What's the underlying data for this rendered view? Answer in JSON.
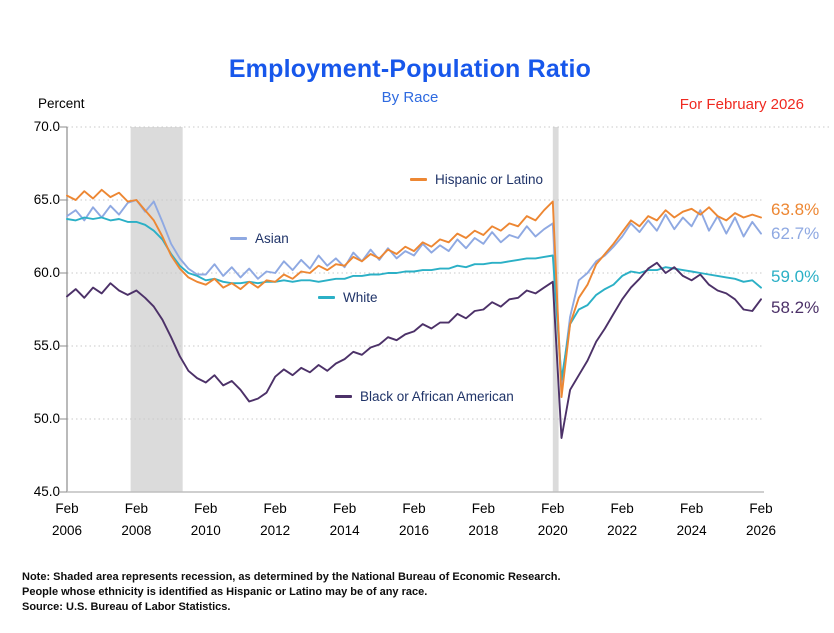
{
  "header": {
    "title": "Employment-Population Ratio",
    "subtitle": "By Race",
    "as_of": "For February 2026",
    "unit_label": "Percent",
    "title_color": "#1757EB",
    "subtitle_color": "#2E6AE0",
    "as_of_color": "#EF2920"
  },
  "chart_data": {
    "type": "line",
    "title": "Employment-Population Ratio",
    "subtitle": "By Race",
    "ylabel": "Percent",
    "ylim": [
      45.0,
      70.0
    ],
    "grid": "dotted horizontal gridlines at every 5.0",
    "legend_position": "inline annotations next to lines",
    "y_tick_values": [
      70,
      65,
      60,
      55,
      50,
      45
    ],
    "y_ticks": [
      "70.0",
      "65.0",
      "60.0",
      "55.0",
      "50.0",
      "45.0"
    ],
    "x_ticks": [
      {
        "month": "Feb",
        "year": "2006"
      },
      {
        "month": "Feb",
        "year": "2008"
      },
      {
        "month": "Feb",
        "year": "2010"
      },
      {
        "month": "Feb",
        "year": "2012"
      },
      {
        "month": "Feb",
        "year": "2014"
      },
      {
        "month": "Feb",
        "year": "2016"
      },
      {
        "month": "Feb",
        "year": "2018"
      },
      {
        "month": "Feb",
        "year": "2020"
      },
      {
        "month": "Feb",
        "year": "2022"
      },
      {
        "month": "Feb",
        "year": "2024"
      },
      {
        "month": "Feb",
        "year": "2026"
      }
    ],
    "x_start": "Feb 2006",
    "x_end": "Feb 2026",
    "months_per_point": 3,
    "recessions_months": [
      {
        "start": 22,
        "end": 40,
        "label": "Dec 2007 - Jun 2009 recession"
      },
      {
        "start": 168,
        "end": 170,
        "label": "Feb 2020 - Apr 2020 recession"
      }
    ],
    "colors": {
      "gridline": "#C9C9C9",
      "recession": "#DBDBDB",
      "axis": "#8C8C8C",
      "axis_bottom": "#BFBFBF",
      "annotation_text": "#1F3368"
    },
    "series": [
      {
        "id": "hispanic",
        "name": "Hispanic or Latino",
        "color": "#ED8733",
        "end_label": "63.8%",
        "values": [
          65.3,
          65.0,
          65.6,
          65.1,
          65.7,
          65.2,
          65.5,
          64.9,
          65.0,
          64.3,
          63.6,
          62.5,
          61.2,
          60.3,
          59.7,
          59.4,
          59.2,
          59.6,
          59.0,
          59.3,
          58.9,
          59.4,
          59.0,
          59.5,
          59.4,
          59.9,
          59.6,
          60.1,
          60.0,
          60.5,
          60.2,
          60.6,
          60.5,
          61.1,
          60.8,
          61.3,
          61.0,
          61.6,
          61.3,
          61.8,
          61.5,
          62.1,
          61.8,
          62.3,
          62.1,
          62.7,
          62.4,
          62.9,
          62.6,
          63.2,
          62.9,
          63.4,
          63.2,
          63.9,
          63.6,
          64.3,
          64.9,
          51.5,
          56.5,
          58.3,
          59.2,
          60.6,
          61.3,
          62.0,
          62.8,
          63.6,
          63.2,
          63.9,
          63.6,
          64.3,
          63.8,
          64.2,
          64.4,
          64.0,
          64.5,
          63.9,
          63.6,
          64.1,
          63.8,
          64.0,
          63.8
        ]
      },
      {
        "id": "asian",
        "name": "Asian",
        "color": "#8FA9E2",
        "end_label": "62.7%",
        "values": [
          63.9,
          64.3,
          63.6,
          64.5,
          63.8,
          64.6,
          64.0,
          64.8,
          65.0,
          64.2,
          64.9,
          63.5,
          62.0,
          61.0,
          60.3,
          59.9,
          59.9,
          60.6,
          59.8,
          60.4,
          59.7,
          60.3,
          59.6,
          60.1,
          60.0,
          60.8,
          60.2,
          60.9,
          60.3,
          61.2,
          60.5,
          61.0,
          60.4,
          61.4,
          60.8,
          61.6,
          60.9,
          61.7,
          61.0,
          61.5,
          61.2,
          62.0,
          61.4,
          61.9,
          61.5,
          62.3,
          61.7,
          62.4,
          62.0,
          62.8,
          62.1,
          62.6,
          62.4,
          63.2,
          62.5,
          63.0,
          63.4,
          52.3,
          57.0,
          59.5,
          60.0,
          60.8,
          61.2,
          61.8,
          62.5,
          63.4,
          62.8,
          63.6,
          62.9,
          64.0,
          63.0,
          63.8,
          63.2,
          64.3,
          62.9,
          63.9,
          62.7,
          63.8,
          62.5,
          63.5,
          62.7
        ]
      },
      {
        "id": "white",
        "name": "White",
        "color": "#2BB0C6",
        "end_label": "59.0%",
        "values": [
          63.7,
          63.6,
          63.8,
          63.7,
          63.8,
          63.6,
          63.7,
          63.5,
          63.5,
          63.3,
          62.9,
          62.3,
          61.3,
          60.5,
          60.0,
          59.8,
          59.5,
          59.6,
          59.4,
          59.3,
          59.3,
          59.4,
          59.3,
          59.4,
          59.4,
          59.5,
          59.4,
          59.5,
          59.5,
          59.4,
          59.5,
          59.6,
          59.6,
          59.8,
          59.8,
          59.9,
          59.9,
          60.0,
          60.0,
          60.1,
          60.1,
          60.2,
          60.2,
          60.3,
          60.3,
          60.5,
          60.4,
          60.6,
          60.6,
          60.7,
          60.7,
          60.8,
          60.9,
          61.0,
          61.0,
          61.1,
          61.2,
          52.7,
          56.5,
          57.5,
          57.8,
          58.5,
          58.9,
          59.2,
          59.8,
          60.1,
          60.0,
          60.2,
          60.2,
          60.4,
          60.3,
          60.2,
          60.1,
          60.0,
          59.9,
          59.8,
          59.7,
          59.6,
          59.4,
          59.5,
          59.0
        ]
      },
      {
        "id": "black",
        "name": "Black or African American",
        "color": "#4C3168",
        "end_label": "58.2%",
        "values": [
          58.4,
          58.9,
          58.3,
          59.0,
          58.6,
          59.3,
          58.8,
          58.5,
          58.8,
          58.3,
          57.7,
          56.8,
          55.6,
          54.3,
          53.3,
          52.8,
          52.5,
          53.0,
          52.3,
          52.6,
          52.0,
          51.2,
          51.4,
          51.8,
          52.9,
          53.4,
          53.0,
          53.5,
          53.2,
          53.7,
          53.3,
          53.8,
          54.1,
          54.6,
          54.4,
          54.9,
          55.1,
          55.6,
          55.4,
          55.8,
          56.0,
          56.5,
          56.2,
          56.6,
          56.6,
          57.2,
          56.9,
          57.4,
          57.5,
          58.0,
          57.7,
          58.2,
          58.3,
          58.8,
          58.6,
          59.0,
          59.4,
          48.7,
          52.0,
          53.0,
          54.0,
          55.3,
          56.2,
          57.2,
          58.2,
          59.0,
          59.6,
          60.3,
          60.7,
          60.0,
          60.4,
          59.8,
          59.5,
          59.9,
          59.2,
          58.8,
          58.6,
          58.2,
          57.5,
          57.4,
          58.2
        ]
      }
    ]
  },
  "notes": {
    "lines": [
      "Note: Shaded area represents recession, as determined by the National Bureau of Economic Research.",
      "People whose ethnicity is identified as Hispanic or Latino may be of any race.",
      "Source: U.S. Bureau of Labor Statistics."
    ]
  }
}
